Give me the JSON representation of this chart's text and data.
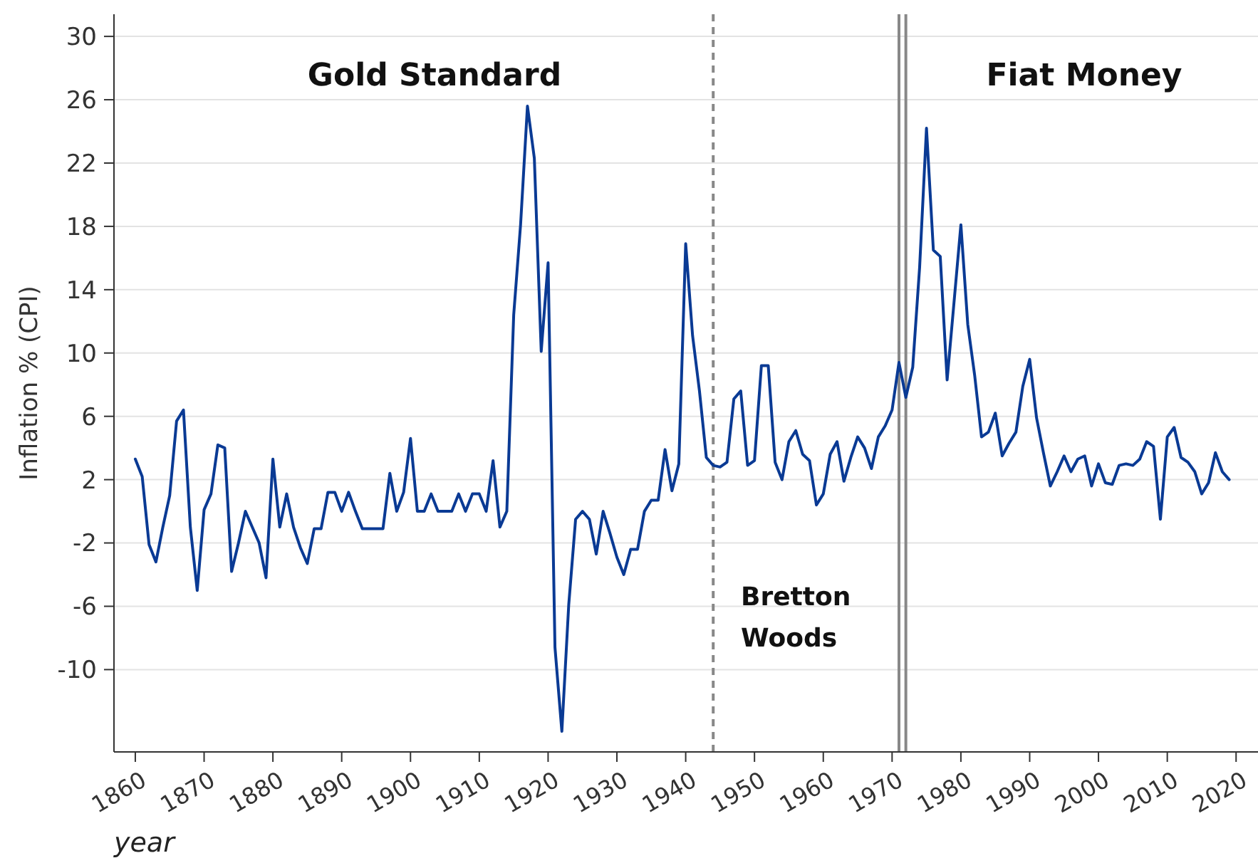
{
  "chart_data": {
    "type": "line",
    "xlabel": "year",
    "ylabel": "Inflation % (CPI)",
    "annotations": [
      "Gold Standard",
      "Fiat Money",
      "Bretton Woods"
    ],
    "x": [
      1860,
      1861,
      1862,
      1863,
      1864,
      1865,
      1866,
      1867,
      1868,
      1869,
      1870,
      1871,
      1872,
      1873,
      1874,
      1875,
      1876,
      1877,
      1878,
      1879,
      1880,
      1881,
      1882,
      1883,
      1884,
      1885,
      1886,
      1887,
      1888,
      1889,
      1890,
      1891,
      1892,
      1893,
      1894,
      1895,
      1896,
      1897,
      1898,
      1899,
      1900,
      1901,
      1902,
      1903,
      1904,
      1905,
      1906,
      1907,
      1908,
      1909,
      1910,
      1911,
      1912,
      1913,
      1914,
      1915,
      1916,
      1917,
      1918,
      1919,
      1920,
      1921,
      1922,
      1923,
      1924,
      1925,
      1926,
      1927,
      1928,
      1929,
      1930,
      1931,
      1932,
      1933,
      1934,
      1935,
      1936,
      1937,
      1938,
      1939,
      1940,
      1941,
      1942,
      1943,
      1944,
      1945,
      1946,
      1947,
      1948,
      1949,
      1950,
      1951,
      1952,
      1953,
      1954,
      1955,
      1956,
      1957,
      1958,
      1959,
      1960,
      1961,
      1962,
      1963,
      1964,
      1965,
      1966,
      1967,
      1968,
      1969,
      1970,
      1971,
      1972,
      1973,
      1974,
      1975,
      1976,
      1977,
      1978,
      1979,
      1980,
      1981,
      1982,
      1983,
      1984,
      1985,
      1986,
      1987,
      1988,
      1989,
      1990,
      1991,
      1992,
      1993,
      1994,
      1995,
      1996,
      1997,
      1998,
      1999,
      2000,
      2001,
      2002,
      2003,
      2004,
      2005,
      2006,
      2007,
      2008,
      2009,
      2010,
      2011,
      2012,
      2013,
      2014,
      2015,
      2016,
      2017,
      2018,
      2019
    ],
    "series": [
      {
        "color": "#0a3a94",
        "values": [
          3.3,
          2.2,
          -2.1,
          -3.2,
          -1.0,
          1.0,
          5.7,
          6.4,
          -1.0,
          -5.0,
          0.1,
          1.1,
          4.2,
          4.0,
          -3.8,
          -2.0,
          0.0,
          -1.0,
          -2.0,
          -4.2,
          3.3,
          -1.0,
          1.1,
          -1.0,
          -2.3,
          -3.3,
          -1.1,
          -1.1,
          1.2,
          1.2,
          0.0,
          1.2,
          0.0,
          -1.1,
          -1.1,
          -1.1,
          -1.1,
          2.4,
          0.0,
          1.2,
          4.6,
          0.0,
          0.0,
          1.1,
          0.0,
          0.0,
          0.0,
          1.1,
          0.0,
          1.1,
          1.1,
          0.0,
          3.2,
          -1.0,
          0.0,
          12.4,
          18.1,
          25.6,
          22.3,
          10.1,
          15.7,
          -8.6,
          -13.9,
          -5.9,
          -0.5,
          0.0,
          -0.5,
          -2.7,
          0.0,
          -1.4,
          -2.9,
          -4.0,
          -2.4,
          -2.4,
          0.0,
          0.7,
          0.7,
          3.9,
          1.3,
          3.0,
          16.9,
          11.1,
          7.6,
          3.4,
          2.9,
          2.8,
          3.1,
          7.1,
          7.6,
          2.9,
          3.2,
          9.2,
          9.2,
          3.1,
          2.0,
          4.4,
          5.1,
          3.6,
          3.2,
          0.4,
          1.1,
          3.6,
          4.4,
          1.9,
          3.4,
          4.7,
          4.0,
          2.7,
          4.7,
          5.4,
          6.4,
          9.4,
          7.2,
          9.1,
          15.4,
          24.2,
          16.5,
          16.1,
          8.3,
          13.2,
          18.1,
          11.8,
          8.6,
          4.7,
          5.0,
          6.2,
          3.5,
          4.3,
          5.0,
          7.9,
          9.6,
          5.9,
          3.7,
          1.6,
          2.5,
          3.5,
          2.5,
          3.3,
          3.5,
          1.6,
          3.0,
          1.8,
          1.7,
          2.9,
          3.0,
          2.9,
          3.3,
          4.4,
          4.1,
          -0.5,
          4.7,
          5.3,
          3.4,
          3.1,
          2.5,
          1.1,
          1.8,
          3.7,
          2.5,
          2.0
        ]
      }
    ],
    "xlim": [
      1856.9,
      2023.6
    ],
    "ylim": [
      -15.2,
      31.4
    ],
    "xticks": [
      1860,
      1870,
      1880,
      1890,
      1900,
      1910,
      1920,
      1930,
      1940,
      1950,
      1960,
      1970,
      1980,
      1990,
      2000,
      2010,
      2020
    ],
    "yticks": [
      30,
      26,
      22,
      18,
      14,
      10,
      6,
      2,
      -2,
      -6,
      -10
    ],
    "grid": "y",
    "line_style": "solid",
    "ref_lines": [
      {
        "axis": "x",
        "value": 1944,
        "color": "#888888",
        "line_style": "dashed"
      },
      {
        "axis": "x",
        "value": 1971,
        "color": "#888888",
        "line_style": "solid"
      },
      {
        "axis": "x",
        "value": 1972,
        "color": "#888888",
        "line_style": "solid"
      }
    ]
  }
}
